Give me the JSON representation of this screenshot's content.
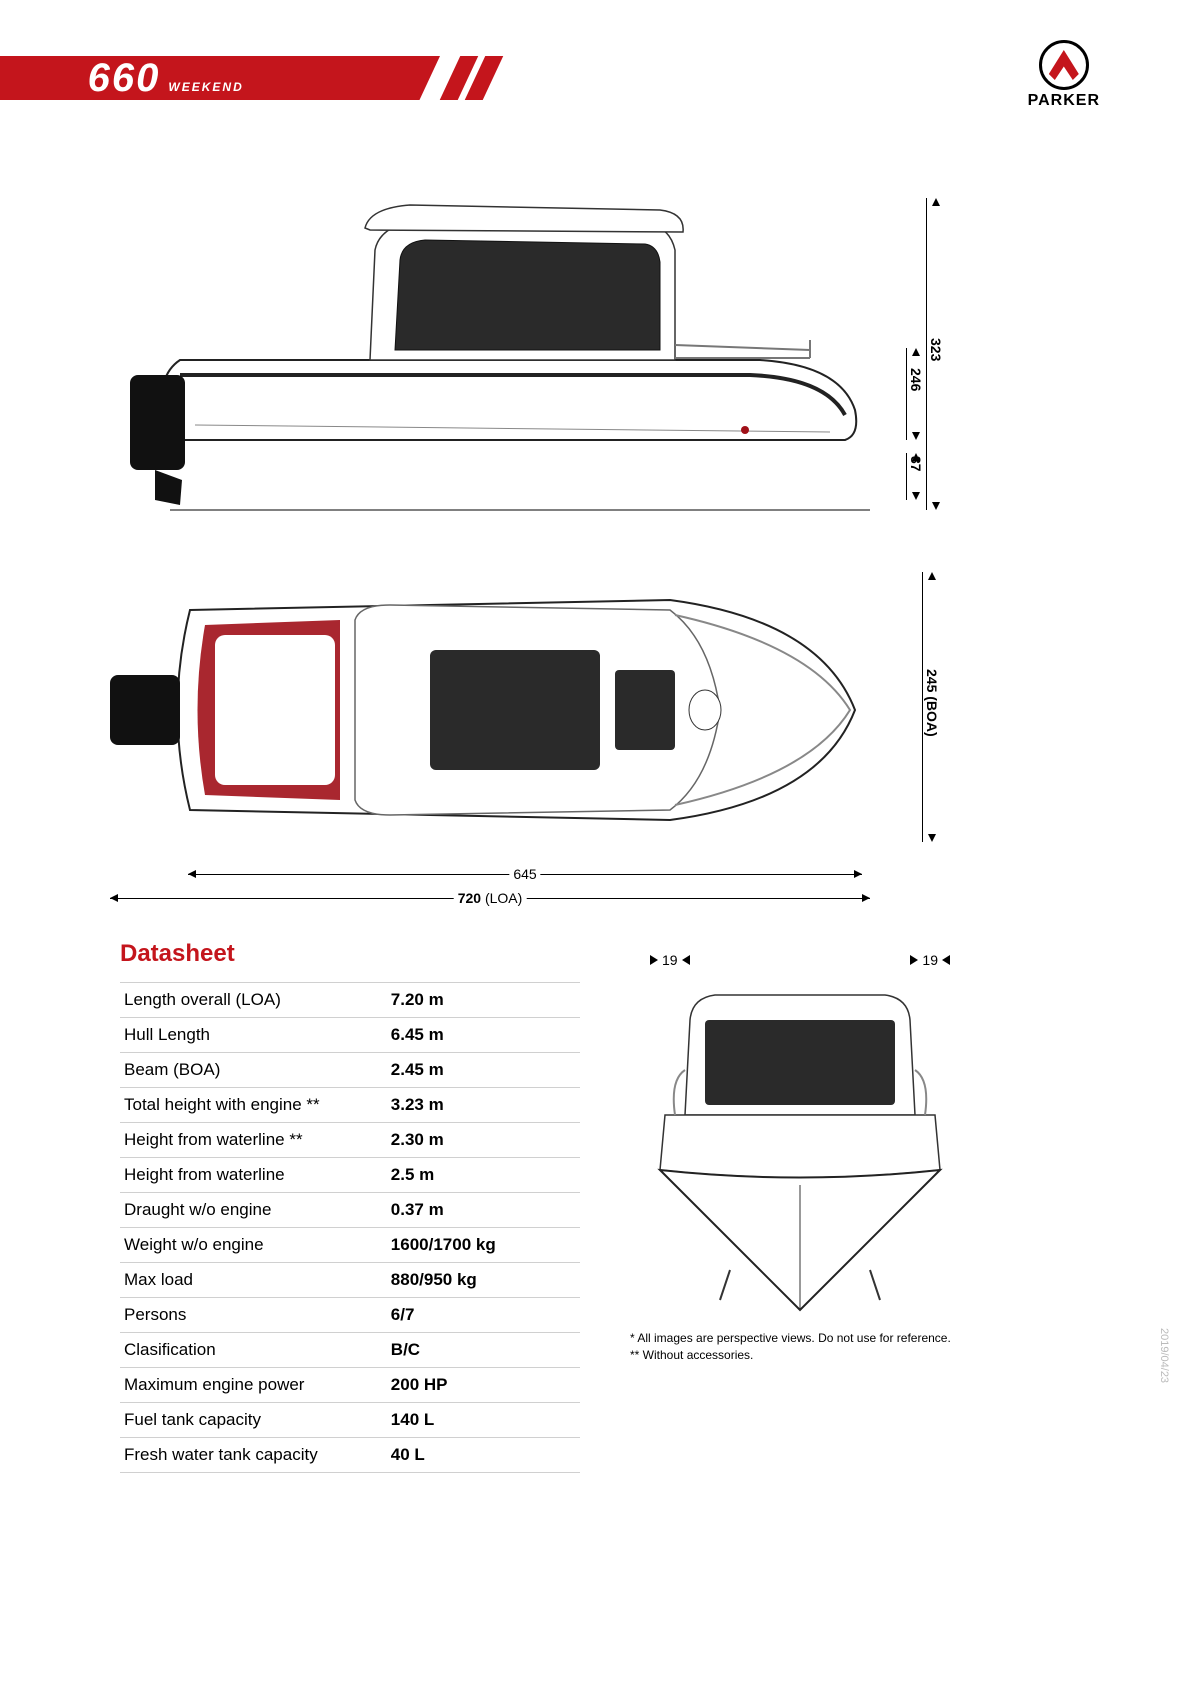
{
  "header": {
    "model_number": "660",
    "model_name": "WEEKEND",
    "brand": "PARKER",
    "band_color": "#c4151c"
  },
  "diagrams": {
    "side": {
      "dims": {
        "total_height": "323",
        "deck_height": "246",
        "draught": "37"
      }
    },
    "top": {
      "dims": {
        "hull_length": "645",
        "loa": "720",
        "loa_suffix": "(LOA)",
        "boa": "245",
        "boa_suffix": "(BOA)"
      }
    },
    "front": {
      "dims": {
        "overhang_left": "19",
        "overhang_right": "19"
      }
    }
  },
  "datasheet": {
    "title": "Datasheet",
    "rows": [
      {
        "label": "Length overall (LOA)",
        "value": "7.20 m"
      },
      {
        "label": "Hull Length",
        "value": "6.45 m"
      },
      {
        "label": "Beam (BOA)",
        "value": "2.45 m"
      },
      {
        "label": "Total height with engine **",
        "value": "3.23 m"
      },
      {
        "label": "Height from waterline **",
        "value": "2.30 m"
      },
      {
        "label": "Height from waterline",
        "value": "2.5 m"
      },
      {
        "label": "Draught w/o engine",
        "value": "0.37 m"
      },
      {
        "label": "Weight w/o engine",
        "value": "1600/1700 kg"
      },
      {
        "label": "Max load",
        "value": "880/950 kg"
      },
      {
        "label": "Persons",
        "value": "6/7"
      },
      {
        "label": "Clasification",
        "value": "B/C"
      },
      {
        "label": "Maximum engine power",
        "value": "200 HP"
      },
      {
        "label": "Fuel tank capacity",
        "value": "140 L"
      },
      {
        "label": "Fresh water tank capacity",
        "value": "40 L"
      }
    ]
  },
  "footnotes": {
    "line1": "*   All images are perspective views. Do not use for reference.",
    "line2": "** Without accessories."
  },
  "date_stamp": "2019/04/23",
  "colors": {
    "accent": "#c4151c",
    "text": "#000000",
    "rule": "#d0d0d0",
    "seat_red": "#a01018"
  }
}
